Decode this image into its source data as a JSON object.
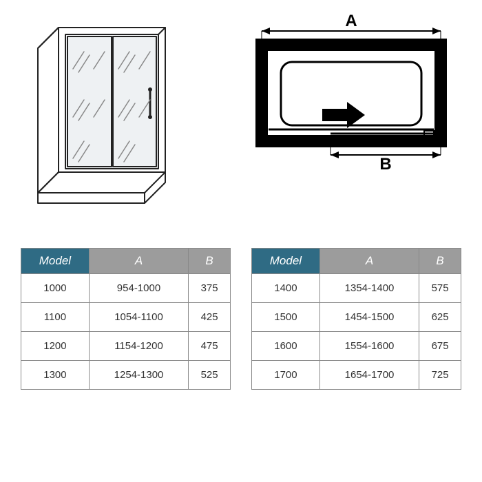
{
  "colors": {
    "header_primary": "#2f6b84",
    "header_secondary": "#9c9c9c",
    "border": "#888888",
    "text": "#333333",
    "diagram_stroke": "#222222",
    "glass_tint": "#e8ecef"
  },
  "diagram_labels": {
    "width_label": "A",
    "opening_label": "B"
  },
  "table_headers": {
    "model": "Model",
    "a": "A",
    "b": "B"
  },
  "tables": {
    "left": {
      "rows": [
        {
          "model": "1000",
          "a": "954-1000",
          "b": "375"
        },
        {
          "model": "1100",
          "a": "1054-1100",
          "b": "425"
        },
        {
          "model": "1200",
          "a": "1154-1200",
          "b": "475"
        },
        {
          "model": "1300",
          "a": "1254-1300",
          "b": "525"
        }
      ]
    },
    "right": {
      "rows": [
        {
          "model": "1400",
          "a": "1354-1400",
          "b": "575"
        },
        {
          "model": "1500",
          "a": "1454-1500",
          "b": "625"
        },
        {
          "model": "1600",
          "a": "1554-1600",
          "b": "675"
        },
        {
          "model": "1700",
          "a": "1654-1700",
          "b": "725"
        }
      ]
    }
  }
}
